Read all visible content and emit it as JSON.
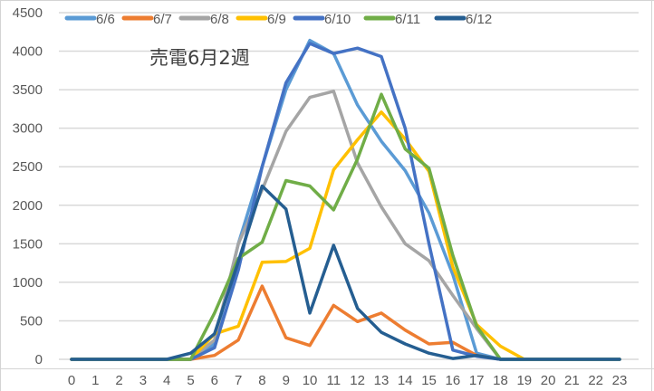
{
  "chart_data": {
    "type": "line",
    "title": "売電6月2週",
    "xlabel": "",
    "ylabel": "",
    "x": [
      0,
      1,
      2,
      3,
      4,
      5,
      6,
      7,
      8,
      9,
      10,
      11,
      12,
      13,
      14,
      15,
      16,
      17,
      18,
      19,
      20,
      21,
      22,
      23
    ],
    "ylim": [
      0,
      4500
    ],
    "yticks": [
      0,
      500,
      1000,
      1500,
      2000,
      2500,
      3000,
      3500,
      4000,
      4500
    ],
    "grid": true,
    "legend_position": "top",
    "series": [
      {
        "name": "6/6",
        "color": "#5B9BD5",
        "values": [
          0,
          0,
          0,
          0,
          0,
          0,
          200,
          1500,
          2500,
          3500,
          4140,
          3970,
          3300,
          2830,
          2450,
          1900,
          1100,
          80,
          0,
          0,
          0,
          0,
          0,
          0
        ]
      },
      {
        "name": "6/7",
        "color": "#ED7D31",
        "values": [
          0,
          0,
          0,
          0,
          0,
          0,
          50,
          250,
          950,
          280,
          180,
          700,
          490,
          600,
          380,
          200,
          220,
          50,
          0,
          0,
          0,
          0,
          0,
          0
        ]
      },
      {
        "name": "6/8",
        "color": "#A5A5A5",
        "values": [
          0,
          0,
          0,
          0,
          0,
          0,
          250,
          1500,
          2200,
          2960,
          3400,
          3480,
          2550,
          1980,
          1500,
          1280,
          830,
          400,
          0,
          0,
          0,
          0,
          0,
          0
        ]
      },
      {
        "name": "6/9",
        "color": "#FFC000",
        "values": [
          0,
          0,
          0,
          0,
          0,
          0,
          330,
          430,
          1260,
          1270,
          1440,
          2460,
          2850,
          3210,
          2860,
          2440,
          1200,
          450,
          170,
          0,
          0,
          0,
          0,
          0
        ]
      },
      {
        "name": "6/10",
        "color": "#4472C4",
        "values": [
          0,
          0,
          0,
          0,
          0,
          0,
          150,
          1160,
          2500,
          3590,
          4100,
          3970,
          4040,
          3930,
          3000,
          1500,
          120,
          40,
          0,
          0,
          0,
          0,
          0,
          0
        ]
      },
      {
        "name": "6/11",
        "color": "#70AD47",
        "values": [
          0,
          0,
          0,
          0,
          0,
          0,
          600,
          1310,
          1520,
          2320,
          2250,
          1940,
          2600,
          3440,
          2730,
          2480,
          1350,
          430,
          0,
          0,
          0,
          0,
          0,
          0
        ]
      },
      {
        "name": "6/12",
        "color": "#255E91",
        "values": [
          0,
          0,
          0,
          0,
          0,
          80,
          330,
          1270,
          2250,
          1950,
          600,
          1480,
          660,
          350,
          200,
          80,
          10,
          50,
          0,
          0,
          0,
          0,
          0,
          0
        ]
      }
    ]
  },
  "chart": {
    "title": "売電6月2週"
  }
}
